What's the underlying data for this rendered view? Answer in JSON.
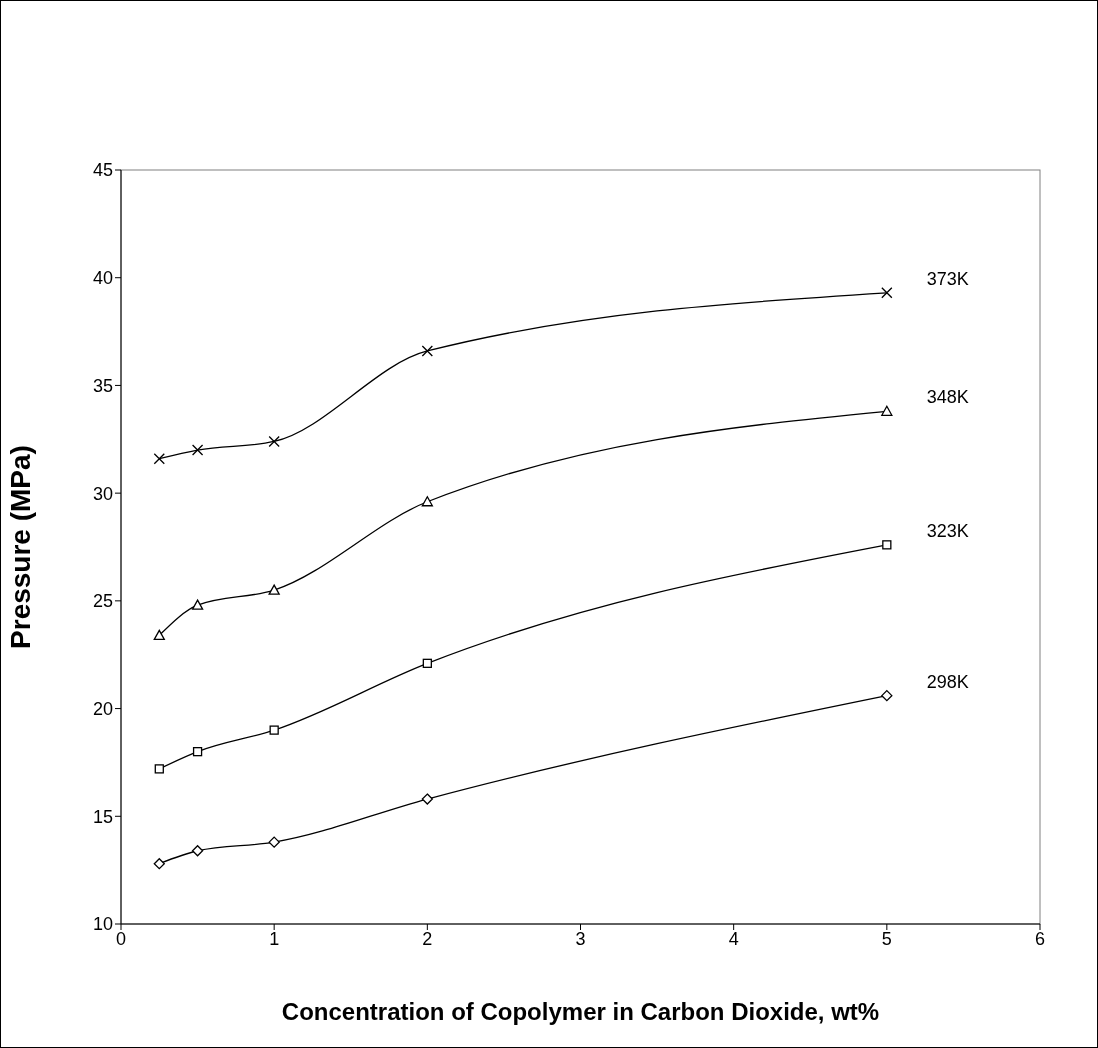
{
  "chart_data": {
    "type": "line",
    "xlabel": "Concentration of Copolymer in Carbon Dioxide, wt%",
    "ylabel": "Pressure (MPa)",
    "x": [
      0.25,
      0.5,
      1,
      2,
      5
    ],
    "xlim": [
      0,
      6
    ],
    "xticks": [
      0,
      1,
      2,
      3,
      4,
      5,
      6
    ],
    "ylim": [
      10,
      45
    ],
    "yticks": [
      10,
      15,
      20,
      25,
      30,
      35,
      40,
      45
    ],
    "grid": false,
    "legend": false,
    "series": [
      {
        "name": "373K",
        "color": "#000000",
        "marker": "cross",
        "values": [
          31.6,
          32.0,
          32.4,
          36.6,
          39.3
        ]
      },
      {
        "name": "348K",
        "color": "#000000",
        "marker": "triangle",
        "values": [
          23.4,
          24.8,
          25.5,
          29.6,
          33.8
        ]
      },
      {
        "name": "323K",
        "color": "#000000",
        "marker": "square",
        "values": [
          17.2,
          18.0,
          19.0,
          22.1,
          27.6
        ]
      },
      {
        "name": "298K",
        "color": "#000000",
        "marker": "diamond",
        "values": [
          12.8,
          13.4,
          13.8,
          15.8,
          20.6
        ]
      }
    ]
  }
}
